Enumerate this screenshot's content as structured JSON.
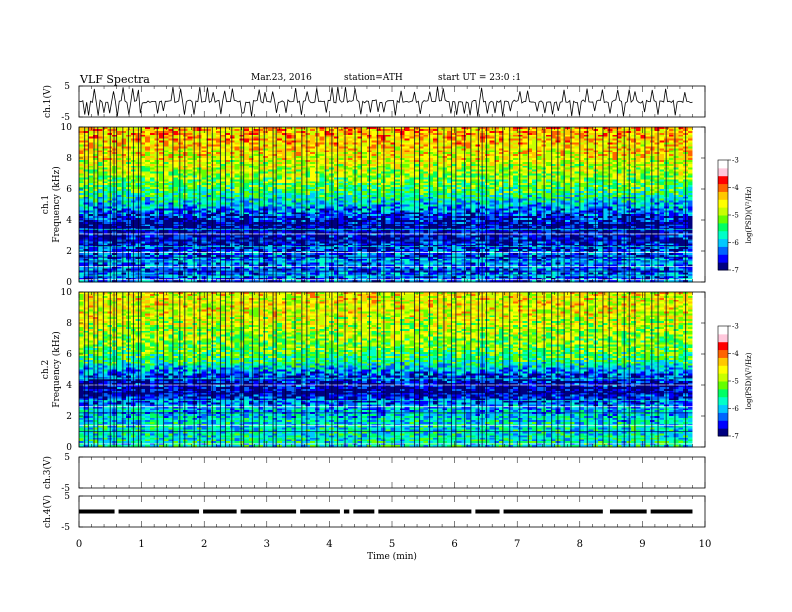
{
  "header": {
    "title": "VLF Spectra",
    "date": "Mar.23, 2016",
    "station": "station=ATH",
    "start": "start UT =  23:0  :1"
  },
  "colors": {
    "scale": [
      "#000080",
      "#0000ff",
      "#0064ff",
      "#00c8ff",
      "#00ffc8",
      "#00ff64",
      "#64ff00",
      "#c8ff00",
      "#ffff00",
      "#ffc800",
      "#ff6400",
      "#ff0000",
      "#ffc8dc",
      "#ffffff"
    ]
  },
  "chart_data": [
    {
      "type": "line",
      "name": "ch1-waveform",
      "ylabel": "ch.1(V)",
      "ylim": [
        -5,
        5
      ],
      "yticks": [
        "5",
        "-5"
      ],
      "x_range": [
        0,
        9.8
      ],
      "baseline": 0,
      "noise_amplitude": 0.4,
      "spikes": [
        0.09,
        0.15,
        0.24,
        0.3,
        0.39,
        0.5,
        0.56,
        0.6,
        0.7,
        0.79,
        0.87,
        0.95,
        0.99,
        1.25,
        1.35,
        1.5,
        1.61,
        1.69,
        1.84,
        1.93,
        2.05,
        2.13,
        2.26,
        2.34,
        2.44,
        2.59,
        2.63,
        2.77,
        2.88,
        2.96,
        3.1,
        3.15,
        3.3,
        3.45,
        3.56,
        3.64,
        3.8,
        3.94,
        4.04,
        4.13,
        4.25,
        4.41,
        4.51,
        4.64,
        4.77,
        4.87,
        5.04,
        5.15,
        5.36,
        5.44,
        5.6,
        5.73,
        5.83,
        5.95,
        6.02,
        6.16,
        6.26,
        6.38,
        6.44,
        6.51,
        6.65,
        6.77,
        6.88,
        7.04,
        7.18,
        7.31,
        7.43,
        7.55,
        7.65,
        7.75,
        7.86,
        8.0,
        8.12,
        8.25,
        8.37,
        8.47,
        8.6,
        8.71,
        8.79,
        8.88,
        9.04,
        9.15,
        9.25,
        9.38,
        9.52,
        9.69
      ]
    },
    {
      "type": "heatmap",
      "name": "ch1-spectrogram",
      "ylabel": "ch.1",
      "ylabel2": "Frequency (kHz)",
      "ylim": [
        0,
        10
      ],
      "yticks": [
        "0",
        "2",
        "4",
        "6",
        "8",
        "10"
      ],
      "x_range": [
        0,
        9.8
      ],
      "colorbar": {
        "label": "log(PSD)(V²/Hz)",
        "range": [
          -7,
          -3
        ],
        "ticks": [
          "-3",
          "-4",
          "-5",
          "-6",
          "-7"
        ]
      },
      "profile_kHz": [
        0.5,
        1.5,
        2.5,
        3.5,
        4.5,
        5.5,
        6.5,
        7.5,
        8.5,
        9.5
      ],
      "profile_logpsd": [
        -6.3,
        -6.2,
        -6.6,
        -6.8,
        -6.3,
        -5.6,
        -5.1,
        -4.8,
        -4.5,
        -4.3
      ],
      "lines_kHz": [
        0.15,
        0.4,
        0.7,
        1.0,
        1.3,
        1.6,
        1.9,
        2.3,
        2.7,
        3.1,
        3.4,
        3.7
      ],
      "spikes": [
        0.09,
        0.15,
        0.24,
        0.3,
        0.39,
        0.5,
        0.56,
        0.6,
        0.7,
        0.79,
        0.87,
        0.95,
        0.99,
        1.25,
        1.35,
        1.5,
        1.61,
        1.69,
        1.84,
        1.93,
        2.05,
        2.13,
        2.26,
        2.34,
        2.44,
        2.59,
        2.63,
        2.77,
        2.88,
        2.96,
        3.1,
        3.15,
        3.3,
        3.45,
        3.56,
        3.64,
        3.8,
        3.94,
        4.04,
        4.13,
        4.25,
        4.41,
        4.51,
        4.64,
        4.77,
        4.87,
        5.04,
        5.15,
        5.36,
        5.44,
        5.6,
        5.73,
        5.83,
        5.95,
        6.02,
        6.16,
        6.26,
        6.38,
        6.44,
        6.51,
        6.65,
        6.77,
        6.88,
        7.04,
        7.18,
        7.31,
        7.43,
        7.55,
        7.65,
        7.75,
        7.86,
        8.0,
        8.12,
        8.25,
        8.37,
        8.47,
        8.6,
        8.71,
        8.79,
        8.88,
        9.04,
        9.15,
        9.25,
        9.38,
        9.52,
        9.69
      ]
    },
    {
      "type": "heatmap",
      "name": "ch2-spectrogram",
      "ylabel": "ch.2",
      "ylabel2": "Frequency (kHz)",
      "ylim": [
        0,
        10
      ],
      "yticks": [
        "0",
        "2",
        "4",
        "6",
        "8",
        "10"
      ],
      "x_range": [
        0,
        9.8
      ],
      "colorbar": {
        "label": "log(PSD)(V²/Hz)",
        "range": [
          -7,
          -3
        ],
        "ticks": [
          "-3",
          "-4",
          "-5",
          "-6",
          "-7"
        ]
      },
      "profile_kHz": [
        0.5,
        1.5,
        2.5,
        3.5,
        4.5,
        5.5,
        6.5,
        7.5,
        8.5,
        9.5
      ],
      "profile_logpsd": [
        -5.7,
        -5.8,
        -6.0,
        -6.8,
        -6.5,
        -5.5,
        -5.1,
        -4.9,
        -4.7,
        -4.6
      ],
      "lines_kHz": [
        0.2,
        0.6,
        1.0,
        1.4,
        1.8,
        2.2,
        2.6,
        3.0,
        3.5,
        4.0,
        4.4
      ],
      "spikes": [
        0.09,
        0.15,
        0.24,
        0.3,
        0.39,
        0.5,
        0.56,
        0.6,
        0.7,
        0.79,
        0.87,
        0.95,
        0.99,
        1.25,
        1.35,
        1.5,
        1.61,
        1.69,
        1.84,
        1.93,
        2.05,
        2.13,
        2.26,
        2.34,
        2.44,
        2.59,
        2.63,
        2.77,
        2.88,
        2.96,
        3.1,
        3.15,
        3.3,
        3.45,
        3.56,
        3.64,
        3.8,
        3.94,
        4.04,
        4.13,
        4.25,
        4.41,
        4.51,
        4.64,
        4.77,
        4.87,
        5.04,
        5.15,
        5.36,
        5.44,
        5.6,
        5.73,
        5.83,
        5.95,
        6.02,
        6.16,
        6.26,
        6.38,
        6.44,
        6.51,
        6.65,
        6.77,
        6.88,
        7.04,
        7.18,
        7.31,
        7.43,
        7.55,
        7.65,
        7.75,
        7.86,
        8.0,
        8.12,
        8.25,
        8.37,
        8.47,
        8.6,
        8.71,
        8.79,
        8.88,
        9.04,
        9.15,
        9.25,
        9.38,
        9.52,
        9.69
      ]
    },
    {
      "type": "line",
      "name": "ch3-waveform",
      "ylabel": "ch.3(V)",
      "ylim": [
        -5,
        5
      ],
      "yticks": [
        "5",
        "-5"
      ],
      "x_range": [
        0,
        9.8
      ],
      "empty": true
    },
    {
      "type": "line",
      "name": "ch4-waveform",
      "ylabel": "ch.4(V)",
      "ylim": [
        -5,
        5
      ],
      "yticks": [
        "5",
        "-5"
      ],
      "x_range": [
        0,
        9.8
      ],
      "baseline": 0,
      "gaps": [
        0.6,
        1.95,
        2.55,
        3.5,
        4.2,
        4.35,
        4.75,
        6.3,
        6.75,
        8.4,
        8.45,
        9.1
      ]
    }
  ],
  "x_axis": {
    "label": "Time (min)",
    "range": [
      0,
      10
    ],
    "ticks": [
      "0",
      "1",
      "2",
      "3",
      "4",
      "5",
      "6",
      "7",
      "8",
      "9",
      "10"
    ]
  }
}
